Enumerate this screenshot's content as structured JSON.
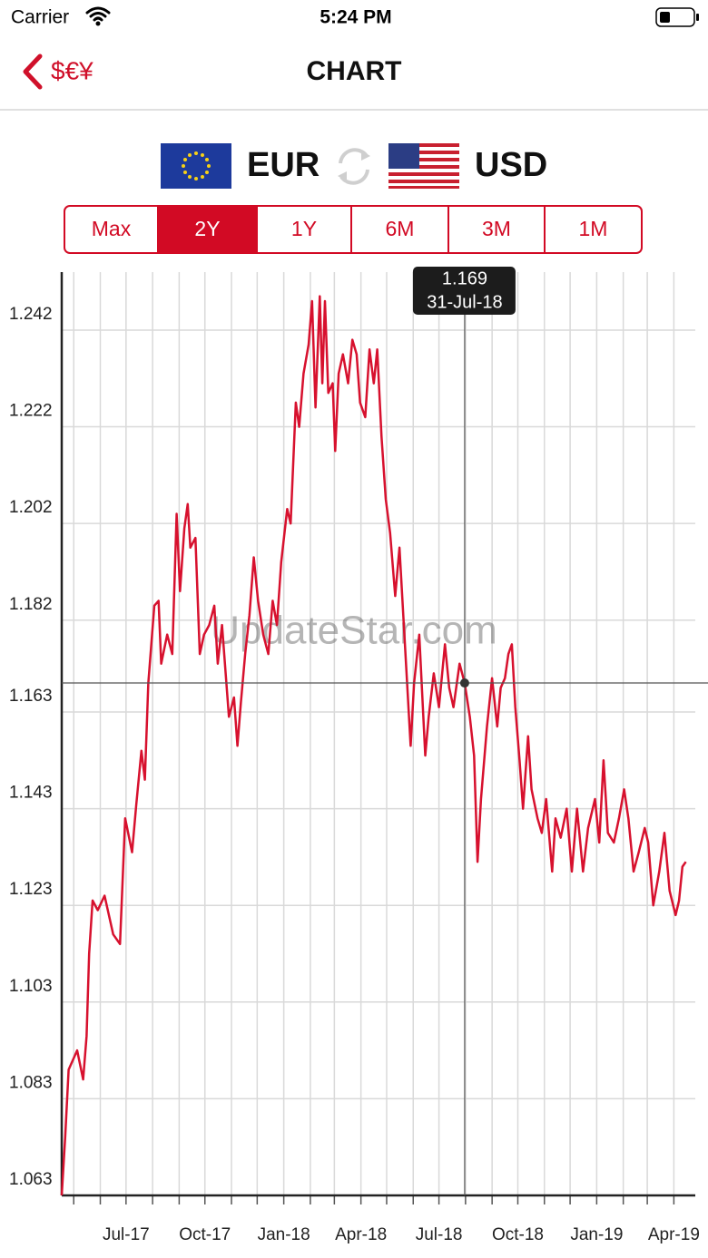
{
  "status_bar": {
    "carrier": "Carrier",
    "time": "5:24 PM"
  },
  "nav": {
    "back": "$€¥",
    "title": "CHART"
  },
  "pair": {
    "from": "EUR",
    "to": "USD"
  },
  "ranges": {
    "options": [
      "Max",
      "2Y",
      "1Y",
      "6M",
      "3M",
      "1M"
    ],
    "selected_index": 1
  },
  "watermark": "UpdateStar.com",
  "chart_data": {
    "type": "line",
    "color": "#d7112e",
    "grid": true,
    "x": [
      "2017-04-17",
      "2017-04-21",
      "2017-04-25",
      "2017-05-05",
      "2017-05-12",
      "2017-05-16",
      "2017-05-19",
      "2017-05-23",
      "2017-05-29",
      "2017-06-06",
      "2017-06-16",
      "2017-06-24",
      "2017-06-30",
      "2017-07-08",
      "2017-07-13",
      "2017-07-19",
      "2017-07-23",
      "2017-07-27",
      "2017-08-03",
      "2017-08-08",
      "2017-08-11",
      "2017-08-18",
      "2017-08-24",
      "2017-08-29",
      "2017-09-02",
      "2017-09-07",
      "2017-09-11",
      "2017-09-14",
      "2017-09-20",
      "2017-09-25",
      "2017-09-30",
      "2017-10-06",
      "2017-10-12",
      "2017-10-16",
      "2017-10-21",
      "2017-10-29",
      "2017-11-04",
      "2017-11-08",
      "2017-11-12",
      "2017-11-17",
      "2017-11-22",
      "2017-11-27",
      "2017-12-02",
      "2017-12-08",
      "2017-12-14",
      "2017-12-19",
      "2017-12-24",
      "2017-12-29",
      "2018-01-05",
      "2018-01-09",
      "2018-01-15",
      "2018-01-19",
      "2018-01-24",
      "2018-01-30",
      "2018-02-03",
      "2018-02-07",
      "2018-02-12",
      "2018-02-15",
      "2018-02-18",
      "2018-02-22",
      "2018-02-27",
      "2018-03-02",
      "2018-03-06",
      "2018-03-11",
      "2018-03-17",
      "2018-03-22",
      "2018-03-27",
      "2018-03-31",
      "2018-04-06",
      "2018-04-11",
      "2018-04-16",
      "2018-04-20",
      "2018-04-25",
      "2018-04-30",
      "2018-05-05",
      "2018-05-11",
      "2018-05-16",
      "2018-05-22",
      "2018-05-29",
      "2018-06-02",
      "2018-06-08",
      "2018-06-15",
      "2018-06-19",
      "2018-06-25",
      "2018-07-01",
      "2018-07-08",
      "2018-07-13",
      "2018-07-18",
      "2018-07-25",
      "2018-07-31",
      "2018-08-06",
      "2018-08-11",
      "2018-08-15",
      "2018-08-19",
      "2018-08-26",
      "2018-09-01",
      "2018-09-07",
      "2018-09-11",
      "2018-09-16",
      "2018-09-20",
      "2018-09-24",
      "2018-09-28",
      "2018-10-03",
      "2018-10-07",
      "2018-10-13",
      "2018-10-17",
      "2018-10-24",
      "2018-10-29",
      "2018-11-03",
      "2018-11-10",
      "2018-11-14",
      "2018-11-20",
      "2018-11-27",
      "2018-12-03",
      "2018-12-09",
      "2018-12-16",
      "2018-12-22",
      "2018-12-30",
      "2019-01-04",
      "2019-01-09",
      "2019-01-14",
      "2019-01-21",
      "2019-01-27",
      "2019-02-02",
      "2019-02-07",
      "2019-02-13",
      "2019-02-19",
      "2019-02-26",
      "2019-03-02",
      "2019-03-08",
      "2019-03-15",
      "2019-03-21",
      "2019-03-27",
      "2019-04-03",
      "2019-04-07",
      "2019-04-11",
      "2019-04-15"
    ],
    "values": [
      1.063,
      1.075,
      1.089,
      1.093,
      1.087,
      1.096,
      1.113,
      1.124,
      1.122,
      1.125,
      1.117,
      1.115,
      1.141,
      1.134,
      1.144,
      1.155,
      1.149,
      1.169,
      1.185,
      1.186,
      1.173,
      1.179,
      1.175,
      1.204,
      1.188,
      1.201,
      1.206,
      1.197,
      1.199,
      1.175,
      1.179,
      1.181,
      1.185,
      1.173,
      1.181,
      1.162,
      1.166,
      1.156,
      1.165,
      1.175,
      1.183,
      1.195,
      1.186,
      1.179,
      1.175,
      1.186,
      1.181,
      1.194,
      1.205,
      1.202,
      1.227,
      1.222,
      1.233,
      1.239,
      1.248,
      1.226,
      1.249,
      1.231,
      1.248,
      1.229,
      1.231,
      1.217,
      1.233,
      1.237,
      1.231,
      1.24,
      1.237,
      1.227,
      1.224,
      1.238,
      1.231,
      1.238,
      1.22,
      1.207,
      1.2,
      1.187,
      1.197,
      1.178,
      1.156,
      1.169,
      1.179,
      1.154,
      1.162,
      1.171,
      1.164,
      1.177,
      1.168,
      1.164,
      1.173,
      1.169,
      1.162,
      1.154,
      1.132,
      1.145,
      1.16,
      1.17,
      1.16,
      1.168,
      1.17,
      1.175,
      1.177,
      1.164,
      1.153,
      1.143,
      1.158,
      1.147,
      1.141,
      1.138,
      1.145,
      1.13,
      1.141,
      1.137,
      1.143,
      1.13,
      1.143,
      1.13,
      1.139,
      1.145,
      1.136,
      1.153,
      1.138,
      1.136,
      1.141,
      1.147,
      1.141,
      1.13,
      1.134,
      1.139,
      1.136,
      1.123,
      1.13,
      1.138,
      1.126,
      1.121,
      1.124,
      1.131,
      1.132
    ],
    "xlim": [
      "2017-04-17",
      "2019-04-26"
    ],
    "xticks": [
      {
        "value": "2017-07-01",
        "label": "Jul-17"
      },
      {
        "value": "2017-10-01",
        "label": "Oct-17"
      },
      {
        "value": "2018-01-01",
        "label": "Jan-18"
      },
      {
        "value": "2018-04-01",
        "label": "Apr-18"
      },
      {
        "value": "2018-07-01",
        "label": "Jul-18"
      },
      {
        "value": "2018-10-01",
        "label": "Oct-18"
      },
      {
        "value": "2019-01-01",
        "label": "Jan-19"
      },
      {
        "value": "2019-04-01",
        "label": "Apr-19"
      }
    ],
    "xminorticks": [
      "2017-05-01",
      "2017-06-01",
      "2017-08-01",
      "2017-09-01",
      "2017-11-01",
      "2017-12-01",
      "2018-02-01",
      "2018-03-01",
      "2018-05-01",
      "2018-06-01",
      "2018-08-01",
      "2018-09-01",
      "2018-11-01",
      "2018-12-01",
      "2019-02-01",
      "2019-03-01"
    ],
    "ylim": [
      1.063,
      1.254
    ],
    "yticks": [
      1.063,
      1.083,
      1.103,
      1.123,
      1.143,
      1.163,
      1.182,
      1.202,
      1.222,
      1.242
    ],
    "crosshair": {
      "x": "2018-07-31",
      "value": 1.169,
      "x_label": "31-Jul-18"
    }
  }
}
